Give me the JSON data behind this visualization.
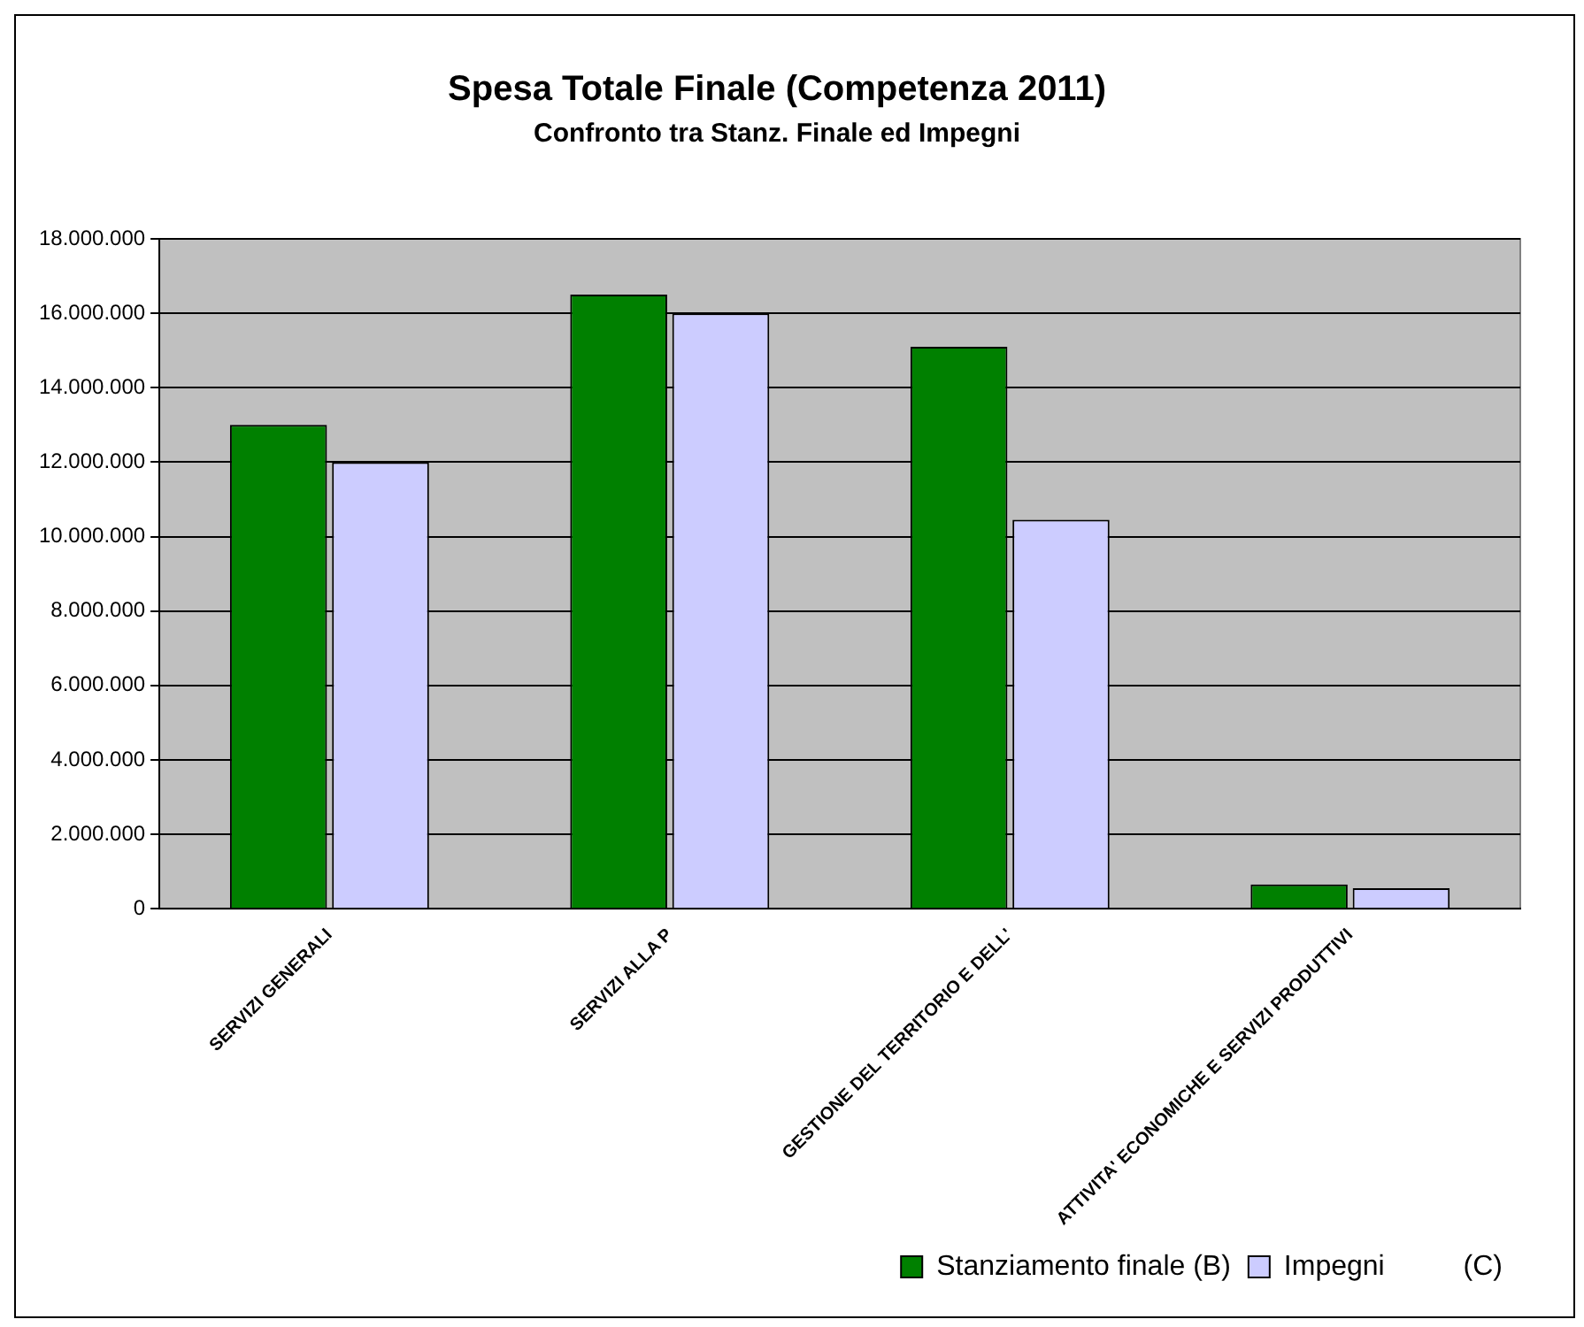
{
  "chart_data": {
    "type": "bar",
    "title": "Spesa Totale Finale (Competenza 2011)",
    "subtitle": "Confronto tra Stanz. Finale ed Impegni",
    "categories": [
      "SERVIZI GENERALI",
      "SERVIZI ALLA P",
      "GESTIONE DEL TERRITORIO E DELL'",
      "ATTIVITA' ECONOMICHE E SERVIZI PRODUTTIVI"
    ],
    "series": [
      {
        "name": "Stanziamento finale (B)",
        "color": "#008000",
        "values": [
          13000000,
          16500000,
          15100000,
          650000
        ]
      },
      {
        "name": "Impegni          (C)",
        "color": "#ccccff",
        "values": [
          12000000,
          16000000,
          10450000,
          550000
        ]
      }
    ],
    "ylim": [
      0,
      18000000
    ],
    "yticks": [
      {
        "value": 0,
        "label": "0"
      },
      {
        "value": 2000000,
        "label": "2.000.000"
      },
      {
        "value": 4000000,
        "label": "4.000.000"
      },
      {
        "value": 6000000,
        "label": "6.000.000"
      },
      {
        "value": 8000000,
        "label": "8.000.000"
      },
      {
        "value": 10000000,
        "label": "10.000.000"
      },
      {
        "value": 12000000,
        "label": "12.000.000"
      },
      {
        "value": 14000000,
        "label": "14.000.000"
      },
      {
        "value": 16000000,
        "label": "16.000.000"
      },
      {
        "value": 18000000,
        "label": "18.000.000"
      }
    ],
    "grid": "y",
    "legend": "bottom right"
  }
}
